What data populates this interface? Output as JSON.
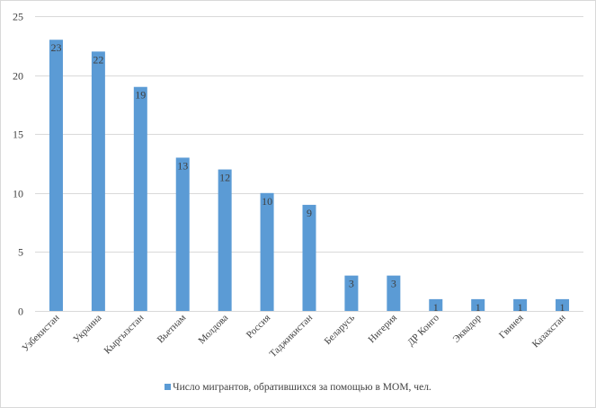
{
  "chart_data": {
    "type": "bar",
    "categories": [
      "Узбекистан",
      "Украина",
      "Кыргызстан",
      "Вьетнам",
      "Молдова",
      "Россия",
      "Таджикистан",
      "Беларусь",
      "Нигерия",
      "ДР Конго",
      "Эквадор",
      "Гвинея",
      "Казахстан"
    ],
    "series": [
      {
        "name": "Число мигрантов, обратившихся за помощью в МОМ, чел.",
        "values": [
          23,
          22,
          19,
          13,
          12,
          10,
          9,
          3,
          3,
          1,
          1,
          1,
          1
        ]
      }
    ],
    "title": "",
    "xlabel": "",
    "ylabel": "",
    "ylim": [
      0,
      25
    ],
    "yticks": [
      0,
      5,
      10,
      15,
      20,
      25
    ],
    "grid": true,
    "legend_position": "bottom",
    "data_labels": true,
    "bar_color": "#5b9bd5",
    "grid_color": "#d9d9d9"
  }
}
